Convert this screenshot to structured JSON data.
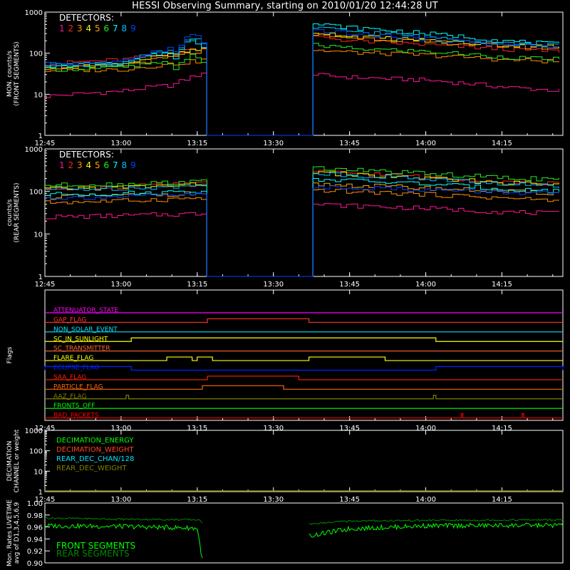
{
  "title": "HESSI Observing Summary, starting on 2010/01/20 12:44:28 UT",
  "colors": {
    "background": "#000000",
    "axis": "#ffffff",
    "det": [
      "#ff1493",
      "#ff2222",
      "#ff8c00",
      "#ffff00",
      "#ffa500",
      "#22ee22",
      "#00ffff",
      "#00bfff",
      "#0044ff"
    ],
    "flags": [
      "#ff00ff",
      "#ff3322",
      "#00e5ff",
      "#ffff00",
      "#ff6633",
      "#ffff00",
      "#0022ff",
      "#ff2200",
      "#ff6600",
      "#808000",
      "#00ff00",
      "#ff0000"
    ],
    "decimation": [
      "#00ff00",
      "#ff4422",
      "#00e5ff",
      "#808000"
    ],
    "livetime": [
      "#00ff00",
      "#008800"
    ]
  },
  "time_axis": {
    "start": "12:45",
    "end": "14:27",
    "ticks": [
      "12:45",
      "13:00",
      "13:15",
      "13:30",
      "13:45",
      "14:00",
      "14:15"
    ]
  },
  "detectors_label": "DETECTORS:",
  "detector_numbers": [
    "1",
    "2",
    "3",
    "4",
    "5",
    "6",
    "7",
    "8",
    "9"
  ],
  "chart_data": [
    {
      "type": "line",
      "panel": "front",
      "ylabel_lines": [
        "MON. counts/s",
        "(FRONT SEGMENTS)"
      ],
      "yscale": "log",
      "ylim": [
        1,
        1000
      ],
      "y_ticks": [
        "1",
        "10",
        "100",
        "1000"
      ],
      "gap": [
        "13:16",
        "13:37"
      ],
      "x": [
        "12:45",
        "13:00",
        "13:10",
        "13:15",
        "13:37",
        "13:45",
        "14:00",
        "14:15",
        "14:27"
      ],
      "series": [
        {
          "name": "1",
          "values": [
            9,
            12,
            17,
            30,
            30,
            26,
            22,
            15,
            12
          ]
        },
        {
          "name": "2",
          "values": [
            55,
            70,
            95,
            130,
            260,
            200,
            160,
            125,
            110
          ]
        },
        {
          "name": "3",
          "values": [
            38,
            40,
            55,
            65,
            120,
            105,
            90,
            70,
            62
          ]
        },
        {
          "name": "4",
          "values": [
            48,
            55,
            95,
            120,
            330,
            260,
            200,
            160,
            140
          ]
        },
        {
          "name": "5",
          "values": [
            45,
            50,
            80,
            110,
            280,
            240,
            190,
            150,
            130
          ]
        },
        {
          "name": "6",
          "values": [
            40,
            45,
            60,
            70,
            160,
            130,
            110,
            80,
            70
          ]
        },
        {
          "name": "7",
          "values": [
            50,
            55,
            110,
            180,
            520,
            420,
            300,
            200,
            160
          ]
        },
        {
          "name": "8",
          "values": [
            52,
            58,
            120,
            200,
            420,
            340,
            250,
            180,
            150
          ]
        },
        {
          "name": "9",
          "values": [
            55,
            60,
            140,
            260,
            380,
            300,
            220,
            160,
            140
          ]
        }
      ]
    },
    {
      "type": "line",
      "panel": "rear",
      "ylabel_lines": [
        "counts/s",
        "(REAR SEGMENTS)"
      ],
      "yscale": "log",
      "ylim": [
        1,
        1000
      ],
      "y_ticks": [
        "1",
        "10",
        "100",
        "1000"
      ],
      "gap": [
        "13:16",
        "13:37"
      ],
      "x": [
        "12:45",
        "13:00",
        "13:15",
        "13:37",
        "13:45",
        "14:00",
        "14:15",
        "14:27"
      ],
      "series": [
        {
          "name": "1",
          "values": [
            25,
            27,
            30,
            50,
            46,
            40,
            33,
            30
          ]
        },
        {
          "name": "2",
          "values": [
            120,
            130,
            150,
            300,
            270,
            220,
            170,
            150
          ]
        },
        {
          "name": "3",
          "values": [
            55,
            60,
            70,
            110,
            100,
            85,
            70,
            60
          ]
        },
        {
          "name": "4",
          "values": [
            115,
            125,
            145,
            280,
            250,
            200,
            160,
            145
          ]
        },
        {
          "name": "5",
          "values": [
            75,
            80,
            90,
            150,
            140,
            120,
            100,
            90
          ]
        },
        {
          "name": "6",
          "values": [
            140,
            150,
            170,
            360,
            320,
            260,
            210,
            190
          ]
        },
        {
          "name": "7",
          "values": [
            85,
            90,
            100,
            200,
            180,
            150,
            115,
            100
          ]
        },
        {
          "name": "8",
          "values": [
            110,
            120,
            135,
            270,
            240,
            200,
            150,
            130
          ]
        },
        {
          "name": "9",
          "values": [
            70,
            75,
            85,
            130,
            125,
            110,
            95,
            90
          ]
        }
      ]
    },
    {
      "type": "line",
      "panel": "flags",
      "ylabel_lines": [
        "Flags"
      ],
      "flags": [
        {
          "name": "ATTENUATOR_STATE",
          "on": []
        },
        {
          "name": "GAP_FLAG",
          "on": [
            [
              "13:17",
              "13:37"
            ]
          ]
        },
        {
          "name": "NON_SOLAR_EVENT",
          "on": []
        },
        {
          "name": "SC_IN_SUNLIGHT",
          "on": [
            [
              "13:02",
              "14:02"
            ]
          ]
        },
        {
          "name": "SC_TRANSMITTER",
          "on": []
        },
        {
          "name": "FLARE_FLAG",
          "on": [
            [
              "13:09",
              "13:14"
            ],
            [
              "13:15",
              "13:18"
            ],
            [
              "13:37",
              "13:52"
            ]
          ]
        },
        {
          "name": "ECLIPSE_FLAG",
          "on": [
            [
              "12:45",
              "13:02"
            ],
            [
              "14:02",
              "14:27"
            ]
          ]
        },
        {
          "name": "SAA_FLAG",
          "on": [
            [
              "13:17",
              "13:35"
            ]
          ]
        },
        {
          "name": "PARTICLE_FLAG",
          "on": [
            [
              "13:16",
              "13:32"
            ]
          ]
        },
        {
          "name": "AAZ_FLAG",
          "on": [
            [
              "13:01",
              "13:01.5"
            ],
            [
              "14:01.5",
              "14:02"
            ]
          ]
        },
        {
          "name": "FRONTS_OFF",
          "on": []
        },
        {
          "name": "BAD_PACKETS",
          "on": [
            [
              "14:07",
              "14:07.3"
            ],
            [
              "14:19",
              "14:19.3"
            ]
          ]
        }
      ]
    },
    {
      "type": "line",
      "panel": "decimation",
      "ylabel_lines": [
        "DECIMATION",
        "CHANNEL or weight"
      ],
      "yscale": "log",
      "ylim": [
        1,
        1000
      ],
      "y_ticks": [
        "1",
        "10",
        "100",
        "1000"
      ],
      "legend": [
        "DECIMATION_ENERGY",
        "DECIMATION_WEIGHT",
        "REAR_DEC_CHAN/128",
        "REAR_DEC_WEIGHT"
      ],
      "series": [
        {
          "name": "REAR_DEC_WEIGHT",
          "values": [
            1,
            1
          ]
        }
      ]
    },
    {
      "type": "line",
      "panel": "livetime",
      "ylabel_lines": [
        "Mon. Rates LIVETIME",
        "avg of D1,3,4,5,6,9"
      ],
      "ylim": [
        0.9,
        1.0
      ],
      "y_ticks": [
        "0.90",
        "0.92",
        "0.94",
        "0.96",
        "0.98",
        "1.00"
      ],
      "legend": [
        "FRONT SEGMENTS",
        "REAR SEGMENTS"
      ],
      "gap": [
        "13:16",
        "13:37"
      ],
      "x": [
        "12:45",
        "13:00",
        "13:15",
        "13:16",
        "13:37",
        "13:45",
        "14:00",
        "14:27"
      ],
      "series": [
        {
          "name": "FRONT SEGMENTS",
          "values": [
            0.962,
            0.961,
            0.958,
            0.905,
            0.945,
            0.957,
            0.962,
            0.963
          ]
        },
        {
          "name": "REAR SEGMENTS",
          "values": [
            0.975,
            0.973,
            0.972,
            0.968,
            0.965,
            0.97,
            0.971,
            0.972
          ]
        }
      ]
    }
  ]
}
